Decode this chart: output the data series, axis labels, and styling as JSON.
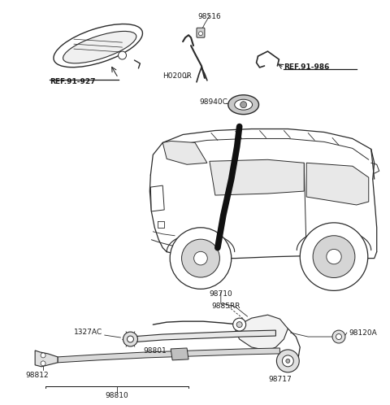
{
  "bg_color": "#ffffff",
  "line_color": "#2a2a2a",
  "text_color": "#1a1a1a",
  "figsize": [
    4.8,
    4.98
  ],
  "dpi": 100,
  "labels": {
    "ref927": "REF.91-927",
    "ref986": "REF.91-986",
    "p98516": "98516",
    "pH0200R": "H0200R",
    "p98940C": "98940C",
    "p98710": "98710",
    "p1327AC": "1327AC",
    "p98812": "98812",
    "p98801": "98801",
    "p98810": "98810",
    "p9885RR": "9885RR",
    "p98120A": "98120A",
    "p98717": "98717"
  }
}
